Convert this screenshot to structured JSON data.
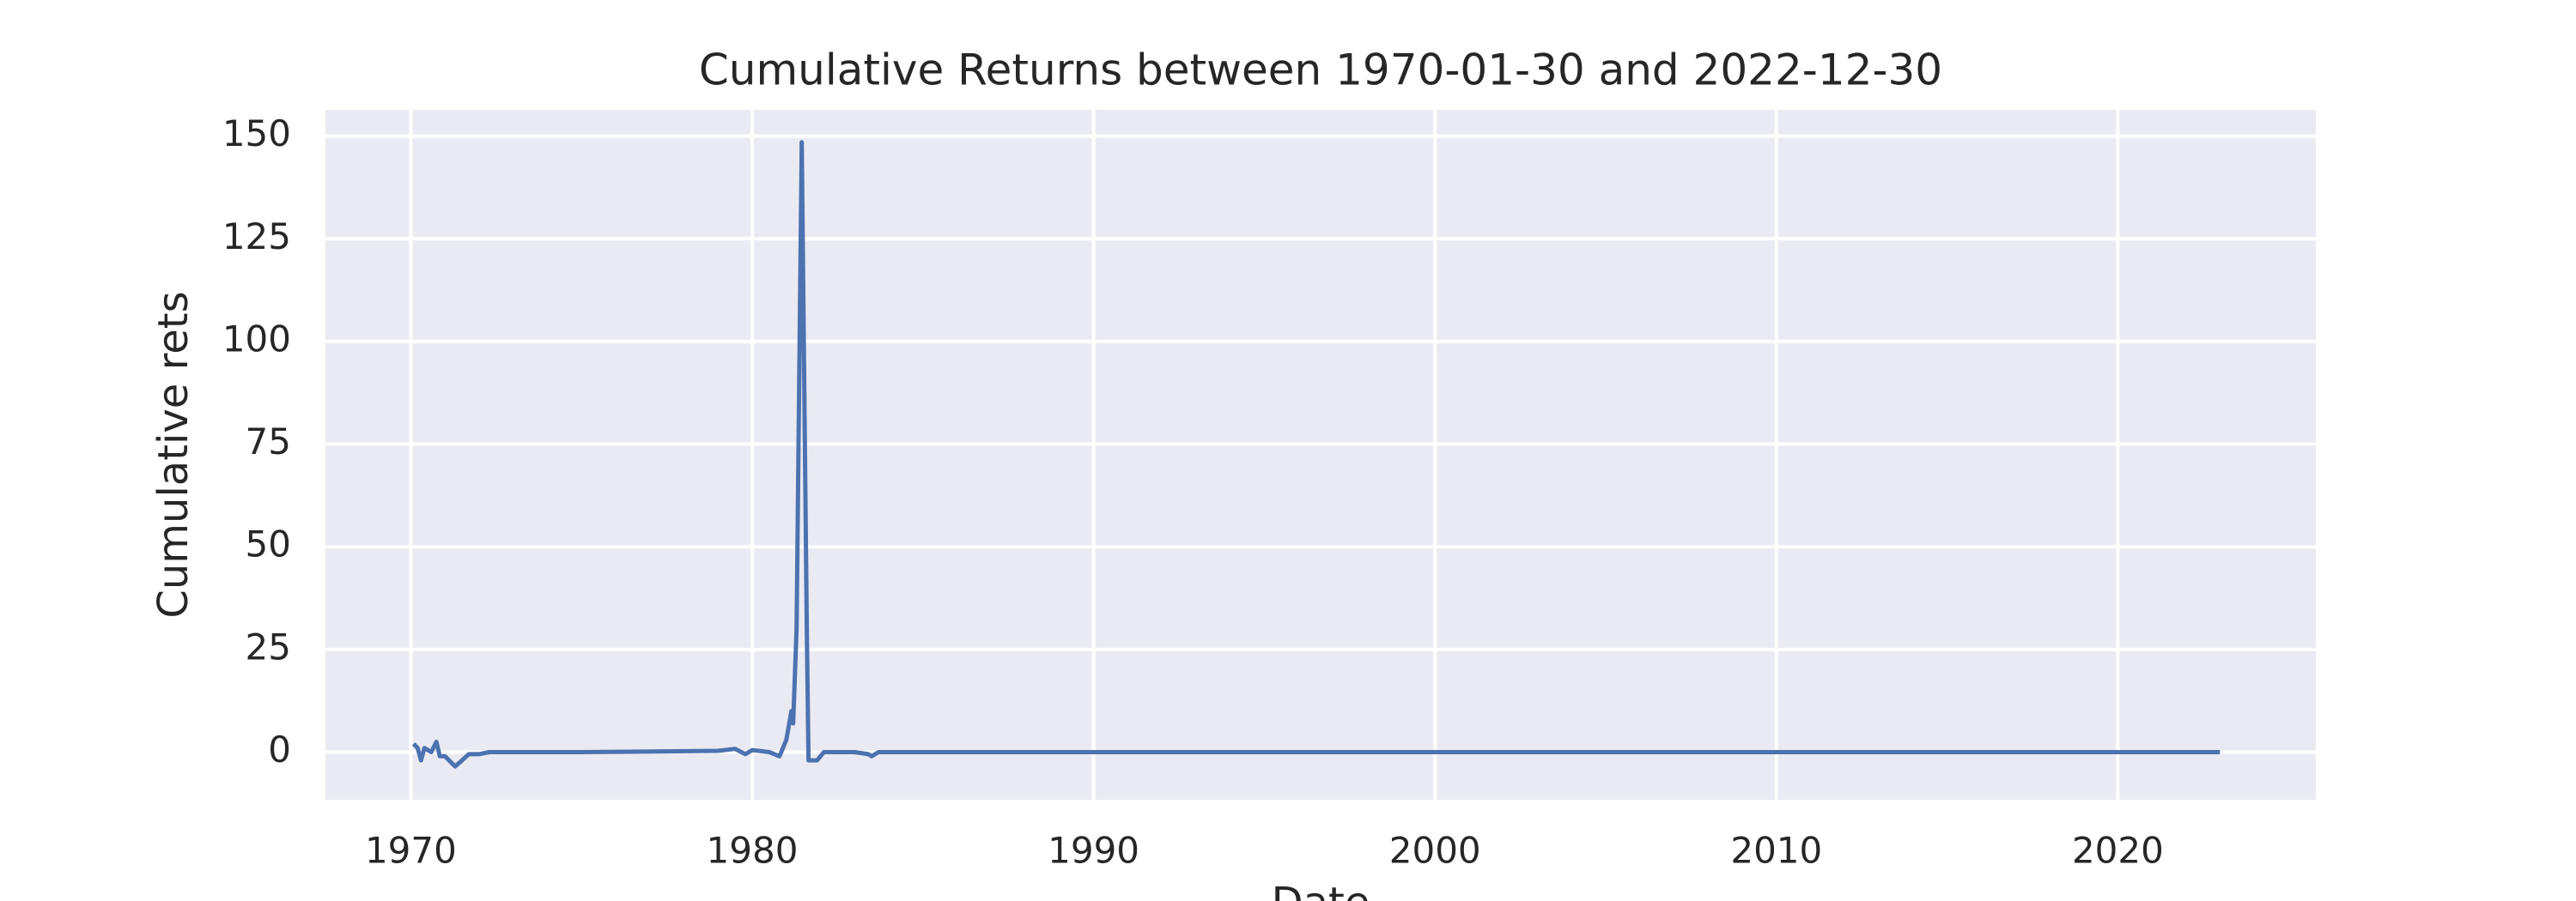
{
  "chart_data": {
    "type": "line",
    "title": "Cumulative Returns between 1970-01-30 and 2022-12-30",
    "x_label": "Date",
    "y_label": "Cumulative rets",
    "x": [
      1970.08,
      1970.2,
      1970.3,
      1970.4,
      1970.6,
      1970.75,
      1970.85,
      1971.0,
      1971.3,
      1971.5,
      1971.7,
      1972.0,
      1972.3,
      1975.0,
      1979.0,
      1979.5,
      1979.8,
      1980.0,
      1980.5,
      1980.8,
      1981.0,
      1981.15,
      1981.2,
      1981.3,
      1981.45,
      1981.6,
      1981.65,
      1981.9,
      1982.1,
      1983.0,
      1983.4,
      1983.5,
      1983.7,
      1990.0,
      2022.99
    ],
    "series": [
      {
        "name": "Cumulative rets",
        "color": "#4c72b0",
        "values": [
          2,
          1,
          -2,
          1,
          0,
          2.5,
          -1,
          -1,
          -3.5,
          -2,
          -0.5,
          -0.5,
          0,
          0,
          0.3,
          0.8,
          -0.5,
          0.5,
          0,
          -1,
          3,
          10,
          7,
          30,
          148.5,
          30,
          -2,
          -2,
          0,
          0,
          -0.5,
          -1,
          0,
          0,
          0
        ]
      }
    ],
    "xlim": [
      1967.5,
      2025.8
    ],
    "ylim": [
      -11.6,
      156.4
    ],
    "xticks": [
      1970,
      1980,
      1990,
      2000,
      2010,
      2020
    ],
    "yticks": [
      0,
      25,
      50,
      75,
      100,
      125,
      150
    ],
    "grid": true
  }
}
